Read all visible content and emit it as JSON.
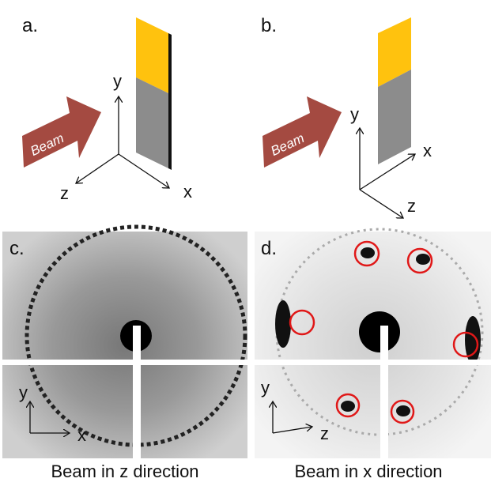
{
  "panels": [
    {
      "label": "a.",
      "beam": "Beam",
      "axis_labels": [
        "y",
        "z",
        "x"
      ]
    },
    {
      "label": "b.",
      "beam": "Beam",
      "axis_labels": [
        "y",
        "x",
        "z"
      ]
    },
    {
      "label": "c.",
      "axis_labels": [
        "y",
        "x"
      ],
      "caption": "Beam in z direction"
    },
    {
      "label": "d.",
      "axis_labels": [
        "y",
        "z"
      ],
      "caption": "Beam in x direction"
    }
  ]
}
